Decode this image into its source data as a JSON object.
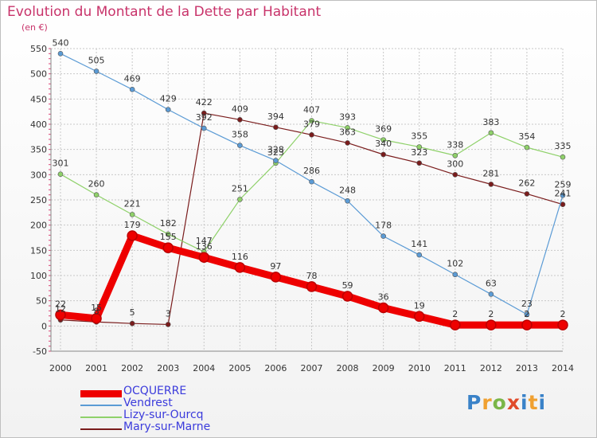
{
  "header": {
    "title": "Evolution du Montant de la Dette par Habitant",
    "subtitle": "(en €)"
  },
  "logo": {
    "text": "Proxiti",
    "colors": [
      "#3a82c8",
      "#f0a030",
      "#7ab648",
      "#e04a2a",
      "#3a82c8",
      "#f0a030"
    ]
  },
  "chart_data": {
    "type": "line",
    "title": "Evolution du Montant de la Dette par Habitant",
    "subtitle": "(en €)",
    "x": [
      "2000",
      "2001",
      "2002",
      "2003",
      "2004",
      "2005",
      "2006",
      "2007",
      "2008",
      "2009",
      "2010",
      "2011",
      "2012",
      "2013",
      "2014"
    ],
    "ylim": [
      -50,
      550
    ],
    "yticks": [
      -50,
      0,
      50,
      100,
      150,
      200,
      250,
      300,
      350,
      400,
      450,
      500,
      550
    ],
    "grid": true,
    "legend_position": "bottom-left",
    "series": [
      {
        "name": "Mary-sur-Marne",
        "color": "#7a1c1c",
        "width": 1.2,
        "values": [
          12,
          8,
          5,
          3,
          422,
          409,
          394,
          379,
          363,
          340,
          323,
          300,
          281,
          262,
          241
        ]
      },
      {
        "name": "Lizy-sur-Ourcq",
        "color": "#8fd16a",
        "width": 1.2,
        "values": [
          301,
          260,
          221,
          182,
          147,
          251,
          323,
          407,
          393,
          369,
          355,
          338,
          383,
          354,
          335
        ]
      },
      {
        "name": "Vendrest",
        "color": "#5b9bd5",
        "width": 1.2,
        "values": [
          540,
          505,
          469,
          429,
          392,
          358,
          328,
          286,
          248,
          178,
          141,
          102,
          63,
          23,
          259
        ]
      },
      {
        "name": "OCQUERRE",
        "color": "#ee0000",
        "width": 9,
        "values": [
          22,
          15,
          179,
          155,
          136,
          116,
          97,
          78,
          59,
          36,
          19,
          2,
          2,
          2,
          2
        ]
      }
    ],
    "legend": [
      "OCQUERRE",
      "Vendrest",
      "Lizy-sur-Ourcq",
      "Mary-sur-Marne"
    ]
  }
}
